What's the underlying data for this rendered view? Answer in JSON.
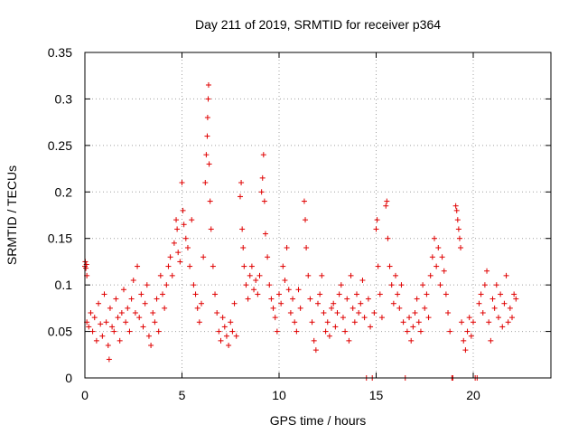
{
  "chart_data": {
    "type": "scatter",
    "title": "Day 211 of 2019, SRMTID for receiver p364",
    "xlabel": "GPS time / hours",
    "ylabel": "SRMTID / TECUs",
    "xlim": [
      0,
      24
    ],
    "ylim": [
      0,
      0.35
    ],
    "x_ticks": [
      0,
      5,
      10,
      15,
      20
    ],
    "x_tick_labels": [
      "0",
      "5",
      "10",
      "15",
      "20"
    ],
    "y_ticks": [
      0,
      0.05,
      0.1,
      0.15,
      0.2,
      0.25,
      0.3,
      0.35
    ],
    "y_tick_labels": [
      "0",
      "0.05",
      "0.1",
      "0.15",
      "0.2",
      "0.25",
      "0.3",
      "0.35"
    ],
    "grid": true,
    "marker": "+",
    "color": "#e00000",
    "series": [
      {
        "name": "p364",
        "points": [
          [
            0.0,
            0.12
          ],
          [
            0.02,
            0.125
          ],
          [
            0.05,
            0.118
          ],
          [
            0.08,
            0.122
          ],
          [
            0.1,
            0.11
          ],
          [
            0.1,
            0.06
          ],
          [
            0.2,
            0.055
          ],
          [
            0.3,
            0.07
          ],
          [
            0.4,
            0.05
          ],
          [
            0.5,
            0.065
          ],
          [
            0.6,
            0.04
          ],
          [
            0.7,
            0.08
          ],
          [
            0.8,
            0.058
          ],
          [
            0.9,
            0.045
          ],
          [
            1.0,
            0.09
          ],
          [
            1.1,
            0.06
          ],
          [
            1.2,
            0.035
          ],
          [
            1.25,
            0.02
          ],
          [
            1.3,
            0.075
          ],
          [
            1.4,
            0.055
          ],
          [
            1.5,
            0.05
          ],
          [
            1.6,
            0.085
          ],
          [
            1.7,
            0.065
          ],
          [
            1.8,
            0.04
          ],
          [
            1.9,
            0.07
          ],
          [
            2.0,
            0.095
          ],
          [
            2.1,
            0.06
          ],
          [
            2.2,
            0.075
          ],
          [
            2.3,
            0.05
          ],
          [
            2.4,
            0.085
          ],
          [
            2.5,
            0.105
          ],
          [
            2.6,
            0.07
          ],
          [
            2.7,
            0.12
          ],
          [
            2.8,
            0.065
          ],
          [
            2.9,
            0.09
          ],
          [
            3.0,
            0.055
          ],
          [
            3.1,
            0.08
          ],
          [
            3.2,
            0.1
          ],
          [
            3.3,
            0.045
          ],
          [
            3.4,
            0.035
          ],
          [
            3.5,
            0.07
          ],
          [
            3.6,
            0.06
          ],
          [
            3.7,
            0.085
          ],
          [
            3.8,
            0.05
          ],
          [
            3.9,
            0.11
          ],
          [
            4.0,
            0.09
          ],
          [
            4.1,
            0.075
          ],
          [
            4.2,
            0.1
          ],
          [
            4.3,
            0.12
          ],
          [
            4.4,
            0.13
          ],
          [
            4.5,
            0.11
          ],
          [
            4.6,
            0.145
          ],
          [
            4.7,
            0.17
          ],
          [
            4.75,
            0.16
          ],
          [
            4.8,
            0.135
          ],
          [
            4.9,
            0.125
          ],
          [
            5.0,
            0.21
          ],
          [
            5.05,
            0.18
          ],
          [
            5.1,
            0.165
          ],
          [
            5.2,
            0.15
          ],
          [
            5.3,
            0.14
          ],
          [
            5.4,
            0.12
          ],
          [
            5.5,
            0.17
          ],
          [
            5.6,
            0.1
          ],
          [
            5.7,
            0.09
          ],
          [
            5.8,
            0.075
          ],
          [
            5.9,
            0.06
          ],
          [
            6.0,
            0.08
          ],
          [
            6.1,
            0.13
          ],
          [
            6.2,
            0.21
          ],
          [
            6.25,
            0.24
          ],
          [
            6.3,
            0.26
          ],
          [
            6.32,
            0.28
          ],
          [
            6.35,
            0.3
          ],
          [
            6.37,
            0.315
          ],
          [
            6.4,
            0.23
          ],
          [
            6.45,
            0.19
          ],
          [
            6.5,
            0.16
          ],
          [
            6.6,
            0.12
          ],
          [
            6.7,
            0.09
          ],
          [
            6.8,
            0.07
          ],
          [
            6.9,
            0.05
          ],
          [
            7.0,
            0.04
          ],
          [
            7.1,
            0.065
          ],
          [
            7.2,
            0.055
          ],
          [
            7.3,
            0.045
          ],
          [
            7.4,
            0.035
          ],
          [
            7.5,
            0.06
          ],
          [
            7.6,
            0.05
          ],
          [
            7.7,
            0.08
          ],
          [
            7.8,
            0.045
          ],
          [
            8.0,
            0.195
          ],
          [
            8.05,
            0.21
          ],
          [
            8.1,
            0.16
          ],
          [
            8.15,
            0.14
          ],
          [
            8.2,
            0.12
          ],
          [
            8.3,
            0.1
          ],
          [
            8.4,
            0.085
          ],
          [
            8.5,
            0.11
          ],
          [
            8.6,
            0.12
          ],
          [
            8.7,
            0.095
          ],
          [
            8.8,
            0.105
          ],
          [
            8.9,
            0.09
          ],
          [
            9.0,
            0.11
          ],
          [
            9.1,
            0.2
          ],
          [
            9.15,
            0.215
          ],
          [
            9.2,
            0.24
          ],
          [
            9.25,
            0.19
          ],
          [
            9.3,
            0.155
          ],
          [
            9.4,
            0.13
          ],
          [
            9.5,
            0.1
          ],
          [
            9.6,
            0.085
          ],
          [
            9.7,
            0.075
          ],
          [
            9.8,
            0.065
          ],
          [
            9.9,
            0.05
          ],
          [
            10.0,
            0.09
          ],
          [
            10.1,
            0.08
          ],
          [
            10.2,
            0.12
          ],
          [
            10.3,
            0.105
          ],
          [
            10.4,
            0.14
          ],
          [
            10.5,
            0.095
          ],
          [
            10.6,
            0.07
          ],
          [
            10.7,
            0.085
          ],
          [
            10.8,
            0.06
          ],
          [
            10.9,
            0.05
          ],
          [
            11.0,
            0.095
          ],
          [
            11.1,
            0.075
          ],
          [
            11.3,
            0.19
          ],
          [
            11.35,
            0.17
          ],
          [
            11.4,
            0.14
          ],
          [
            11.5,
            0.11
          ],
          [
            11.6,
            0.085
          ],
          [
            11.7,
            0.06
          ],
          [
            11.8,
            0.04
          ],
          [
            11.9,
            0.03
          ],
          [
            12.0,
            0.08
          ],
          [
            12.1,
            0.09
          ],
          [
            12.2,
            0.11
          ],
          [
            12.3,
            0.07
          ],
          [
            12.4,
            0.05
          ],
          [
            12.5,
            0.06
          ],
          [
            12.6,
            0.045
          ],
          [
            12.7,
            0.075
          ],
          [
            12.8,
            0.08
          ],
          [
            12.9,
            0.055
          ],
          [
            13.0,
            0.07
          ],
          [
            13.1,
            0.09
          ],
          [
            13.2,
            0.1
          ],
          [
            13.3,
            0.065
          ],
          [
            13.4,
            0.05
          ],
          [
            13.5,
            0.085
          ],
          [
            13.6,
            0.04
          ],
          [
            13.7,
            0.11
          ],
          [
            13.8,
            0.075
          ],
          [
            13.9,
            0.06
          ],
          [
            14.0,
            0.09
          ],
          [
            14.1,
            0.07
          ],
          [
            14.2,
            0.08
          ],
          [
            14.3,
            0.105
          ],
          [
            14.4,
            0.065
          ],
          [
            14.5,
            0.0
          ],
          [
            14.6,
            0.085
          ],
          [
            14.7,
            0.055
          ],
          [
            14.8,
            0.0
          ],
          [
            14.9,
            0.07
          ],
          [
            15.0,
            0.16
          ],
          [
            15.05,
            0.17
          ],
          [
            15.1,
            0.12
          ],
          [
            15.2,
            0.09
          ],
          [
            15.3,
            0.065
          ],
          [
            15.5,
            0.185
          ],
          [
            15.55,
            0.19
          ],
          [
            15.6,
            0.15
          ],
          [
            15.7,
            0.12
          ],
          [
            15.8,
            0.1
          ],
          [
            15.9,
            0.08
          ],
          [
            16.0,
            0.11
          ],
          [
            16.1,
            0.09
          ],
          [
            16.2,
            0.075
          ],
          [
            16.3,
            0.1
          ],
          [
            16.4,
            0.06
          ],
          [
            16.5,
            0.0
          ],
          [
            16.6,
            0.05
          ],
          [
            16.7,
            0.065
          ],
          [
            16.8,
            0.04
          ],
          [
            16.9,
            0.055
          ],
          [
            17.0,
            0.07
          ],
          [
            17.1,
            0.085
          ],
          [
            17.2,
            0.06
          ],
          [
            17.3,
            0.05
          ],
          [
            17.4,
            0.1
          ],
          [
            17.5,
            0.075
          ],
          [
            17.6,
            0.09
          ],
          [
            17.7,
            0.065
          ],
          [
            17.8,
            0.11
          ],
          [
            17.9,
            0.13
          ],
          [
            18.0,
            0.15
          ],
          [
            18.1,
            0.12
          ],
          [
            18.2,
            0.14
          ],
          [
            18.3,
            0.1
          ],
          [
            18.4,
            0.13
          ],
          [
            18.5,
            0.115
          ],
          [
            18.6,
            0.09
          ],
          [
            18.7,
            0.07
          ],
          [
            18.8,
            0.05
          ],
          [
            18.9,
            0.0
          ],
          [
            18.95,
            0.0
          ],
          [
            19.1,
            0.185
          ],
          [
            19.15,
            0.18
          ],
          [
            19.2,
            0.17
          ],
          [
            19.25,
            0.16
          ],
          [
            19.3,
            0.15
          ],
          [
            19.35,
            0.14
          ],
          [
            19.4,
            0.06
          ],
          [
            19.5,
            0.04
          ],
          [
            19.6,
            0.03
          ],
          [
            19.7,
            0.05
          ],
          [
            19.8,
            0.065
          ],
          [
            19.9,
            0.045
          ],
          [
            20.0,
            0.06
          ],
          [
            20.1,
            0.0
          ],
          [
            20.2,
            0.0
          ],
          [
            20.3,
            0.08
          ],
          [
            20.4,
            0.09
          ],
          [
            20.5,
            0.07
          ],
          [
            20.6,
            0.1
          ],
          [
            20.7,
            0.115
          ],
          [
            20.8,
            0.06
          ],
          [
            20.9,
            0.04
          ],
          [
            21.0,
            0.085
          ],
          [
            21.1,
            0.075
          ],
          [
            21.2,
            0.1
          ],
          [
            21.3,
            0.065
          ],
          [
            21.4,
            0.09
          ],
          [
            21.5,
            0.055
          ],
          [
            21.6,
            0.08
          ],
          [
            21.7,
            0.11
          ],
          [
            21.8,
            0.06
          ],
          [
            21.9,
            0.075
          ],
          [
            22.0,
            0.065
          ],
          [
            22.1,
            0.09
          ],
          [
            22.2,
            0.085
          ]
        ]
      }
    ]
  }
}
